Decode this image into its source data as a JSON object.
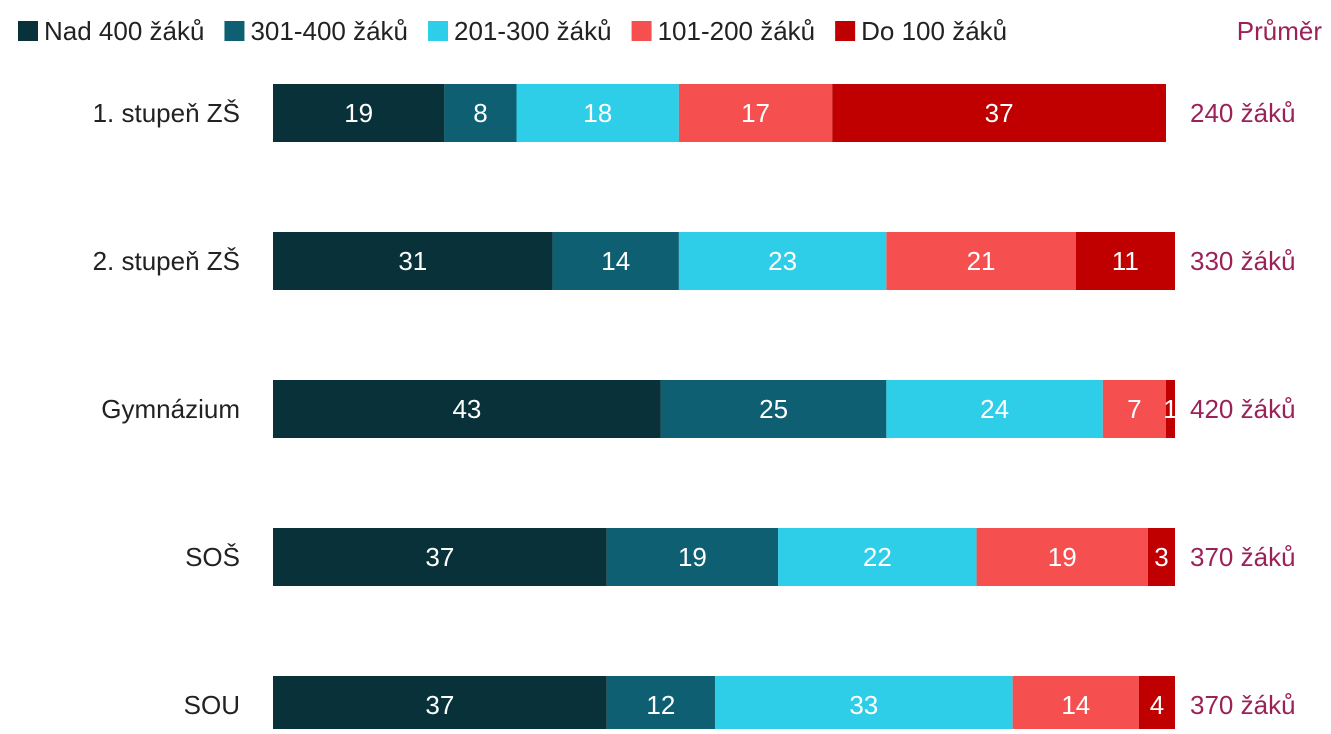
{
  "chart_data": {
    "type": "stacked-bar-horizontal",
    "categories": [
      "1. stupeň ZŠ",
      "2. stupeň ZŠ",
      "Gymnázium",
      "SOŠ",
      "SOU"
    ],
    "series": [
      {
        "name": "Nad 400 žáků",
        "color": "#08313a",
        "values": [
          19,
          31,
          43,
          37,
          37
        ]
      },
      {
        "name": "301-400 žáků",
        "color": "#0e5f72",
        "values": [
          8,
          14,
          25,
          19,
          12
        ]
      },
      {
        "name": "201-300 žáků",
        "color": "#2ecde8",
        "values": [
          18,
          23,
          24,
          22,
          33
        ]
      },
      {
        "name": "101-200 žáků",
        "color": "#f64f4f",
        "values": [
          17,
          21,
          7,
          19,
          14
        ]
      },
      {
        "name": "Do 100 žáků",
        "color": "#c00000",
        "values": [
          37,
          11,
          1,
          3,
          4
        ]
      }
    ],
    "xlim": [
      0,
      100
    ],
    "annotation_header": "Průměr",
    "annotations": [
      "240 žáků",
      "330 žáků",
      "420 žáků",
      "370 žáků",
      "370 žáků"
    ],
    "annotation_color": "#9b2258",
    "legend": "top"
  }
}
